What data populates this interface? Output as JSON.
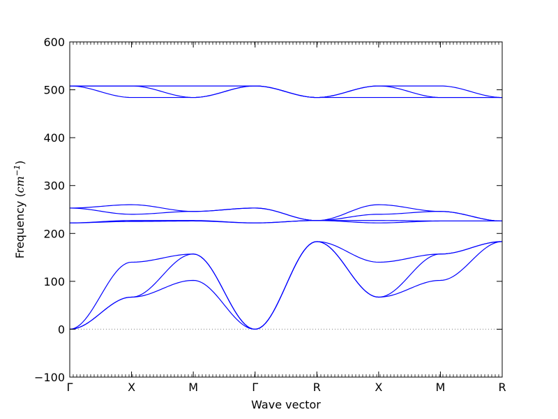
{
  "chart_data": {
    "type": "line",
    "title": "",
    "xlabel": "Wave vector",
    "ylabel": "Frequency",
    "ylabel_unit": "cm",
    "ylabel_unit_exp": "−1",
    "ylim": [
      -100,
      600
    ],
    "yticks": [
      -100,
      0,
      100,
      200,
      300,
      400,
      500,
      600
    ],
    "x": [
      0,
      1,
      2,
      3,
      4,
      5,
      6,
      7
    ],
    "x_tick_labels": [
      "Γ",
      "X",
      "M",
      "Γ",
      "R",
      "X",
      "M",
      "R"
    ],
    "xlim": [
      0,
      7
    ],
    "zero_line": 0,
    "grid": false,
    "legend": "none",
    "colors": {
      "band": "#0000ff",
      "zero_line": "#808080",
      "axes": "#000000"
    },
    "series": [
      {
        "values": [
          0,
          67,
          102,
          0,
          183,
          67,
          102,
          183
        ]
      },
      {
        "values": [
          0,
          67,
          157,
          0,
          183,
          67,
          157,
          183
        ]
      },
      {
        "values": [
          0,
          140,
          157,
          0,
          183,
          140,
          157,
          183
        ]
      },
      {
        "values": [
          222,
          225,
          226,
          222,
          227,
          222,
          226,
          226
        ]
      },
      {
        "values": [
          222,
          227,
          227,
          222,
          227,
          227,
          226,
          226
        ]
      },
      {
        "values": [
          253,
          240,
          246,
          253,
          227,
          240,
          246,
          226
        ]
      },
      {
        "values": [
          253,
          260,
          246,
          253,
          227,
          260,
          246,
          226
        ]
      },
      {
        "values": [
          508,
          484,
          484,
          508,
          484,
          484,
          484,
          484
        ]
      },
      {
        "values": [
          508,
          508,
          484,
          508,
          484,
          508,
          484,
          484
        ]
      },
      {
        "values": [
          508,
          508,
          508,
          508,
          484,
          508,
          508,
          484
        ]
      }
    ]
  }
}
